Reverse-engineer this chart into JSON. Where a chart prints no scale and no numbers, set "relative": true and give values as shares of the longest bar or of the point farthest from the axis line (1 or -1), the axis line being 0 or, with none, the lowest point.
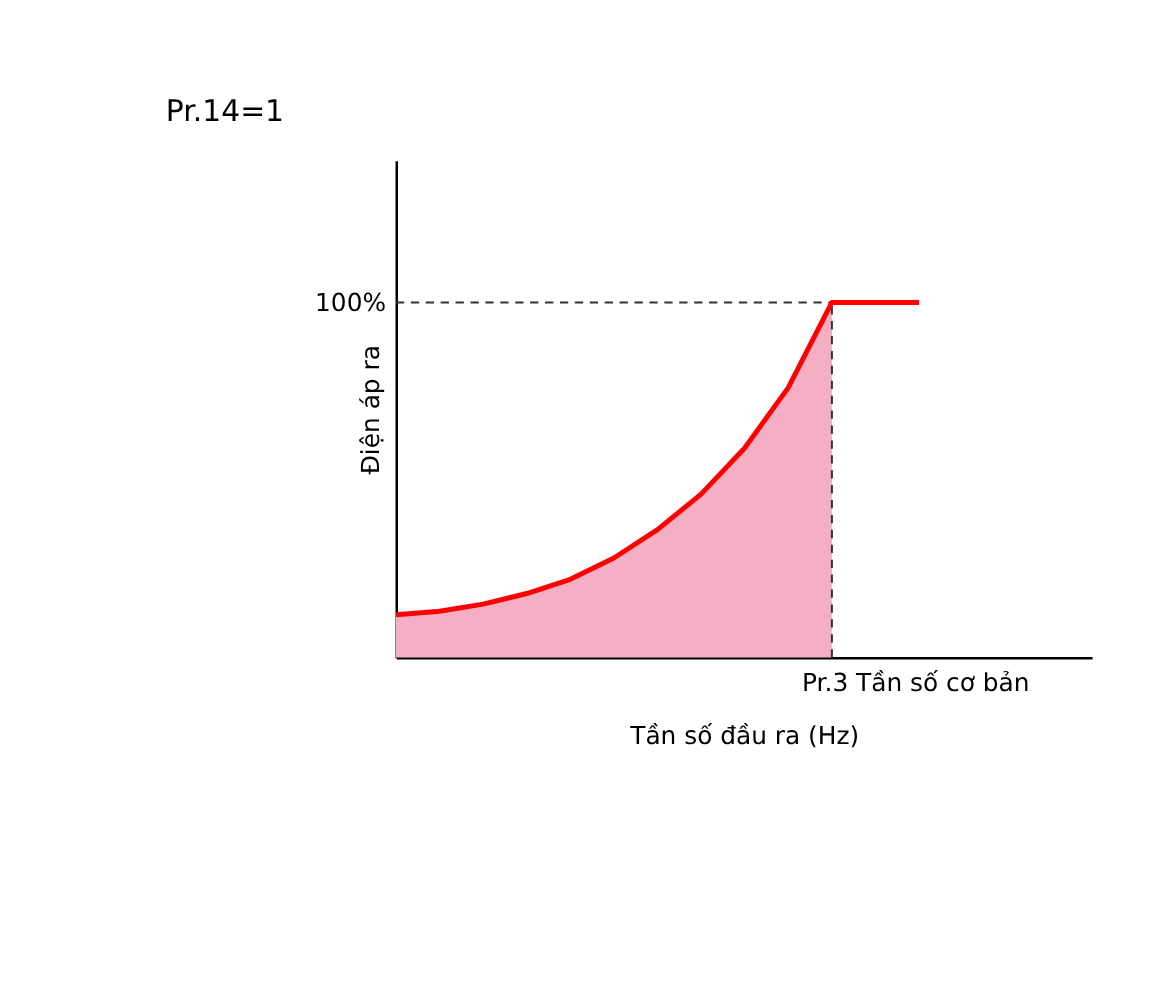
{
  "chart_data": {
    "type": "line",
    "title": "Pr.14=1",
    "xlabel": "Tần số đầu ra (Hz)",
    "ylabel": "Điện áp ra",
    "relative": true,
    "grid": false,
    "categories": [
      null,
      null,
      null,
      null,
      null,
      null,
      null,
      null,
      null,
      null,
      null,
      null,
      null
    ],
    "series": [
      {
        "type": "area",
        "color": "#f4afc4",
        "values": [
          0.12,
          0.13,
          0.15,
          0.18,
          0.22,
          0.28,
          0.36,
          0.46,
          0.59,
          0.76,
          1.0,
          null,
          null
        ]
      },
      {
        "color": "#ff0000",
        "values": [
          0.12,
          0.13,
          0.15,
          0.18,
          0.22,
          0.28,
          0.36,
          0.46,
          0.59,
          0.76,
          1.0,
          1.0,
          1.0
        ]
      }
    ],
    "ref_lines": [
      {
        "axis": "y",
        "value": 1.0,
        "label": "100%",
        "line_style": "dashed",
        "color": "#333333"
      },
      {
        "axis": "x",
        "label": "Pr.3 Tần số cơ bản",
        "line_style": "dashed",
        "color": "#333333"
      }
    ]
  }
}
